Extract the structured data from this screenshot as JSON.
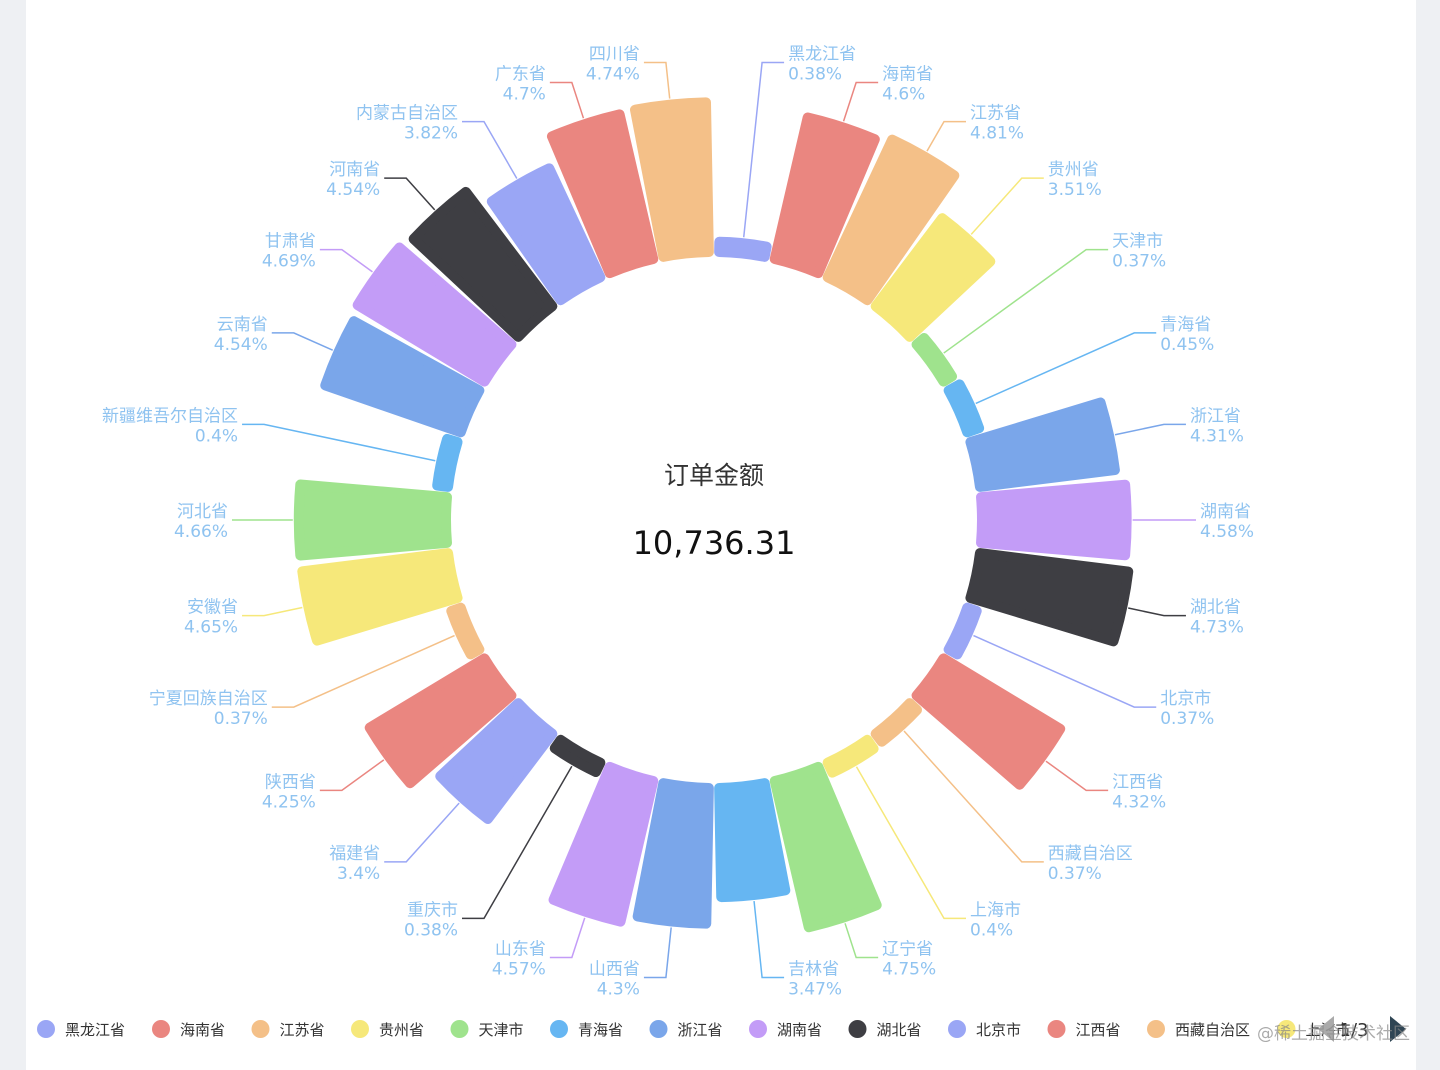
{
  "chart_data": {
    "type": "pie",
    "variant": "rose",
    "center_title": "订单金额",
    "center_value": "10,736.31",
    "colors": [
      "#9aa6f5",
      "#ea8680",
      "#f4c088",
      "#f6e87a",
      "#9fe38d",
      "#66b6f2",
      "#7aa6ea",
      "#c39cf7",
      "#3e3e43"
    ],
    "slices": [
      {
        "name": "黑龙江省",
        "percent": 0.38
      },
      {
        "name": "海南省",
        "percent": 4.6
      },
      {
        "name": "江苏省",
        "percent": 4.81
      },
      {
        "name": "贵州省",
        "percent": 3.51
      },
      {
        "name": "天津市",
        "percent": 0.37
      },
      {
        "name": "青海省",
        "percent": 0.45
      },
      {
        "name": "浙江省",
        "percent": 4.31
      },
      {
        "name": "湖南省",
        "percent": 4.58
      },
      {
        "name": "湖北省",
        "percent": 4.73
      },
      {
        "name": "北京市",
        "percent": 0.37
      },
      {
        "name": "江西省",
        "percent": 4.32
      },
      {
        "name": "西藏自治区",
        "percent": 0.37
      },
      {
        "name": "上海市",
        "percent": 0.4
      },
      {
        "name": "辽宁省",
        "percent": 4.75
      },
      {
        "name": "吉林省",
        "percent": 3.47
      },
      {
        "name": "山西省",
        "percent": 4.3
      },
      {
        "name": "山东省",
        "percent": 4.57
      },
      {
        "name": "重庆市",
        "percent": 0.38
      },
      {
        "name": "福建省",
        "percent": 3.4
      },
      {
        "name": "陕西省",
        "percent": 4.25
      },
      {
        "name": "宁夏回族自治区",
        "percent": 0.37
      },
      {
        "name": "安徽省",
        "percent": 4.65
      },
      {
        "name": "河北省",
        "percent": 4.66
      },
      {
        "name": "新疆维吾尔自治区",
        "percent": 0.4
      },
      {
        "name": "云南省",
        "percent": 4.54
      },
      {
        "name": "甘肃省",
        "percent": 4.69
      },
      {
        "name": "河南省",
        "percent": 4.54
      },
      {
        "name": "内蒙古自治区",
        "percent": 3.82
      },
      {
        "name": "广东省",
        "percent": 4.7
      },
      {
        "name": "四川省",
        "percent": 4.74
      }
    ],
    "legend": {
      "position": "bottom",
      "visible_items": 13,
      "page": "1/3"
    }
  },
  "watermark": "@稀土掘金技术社区"
}
